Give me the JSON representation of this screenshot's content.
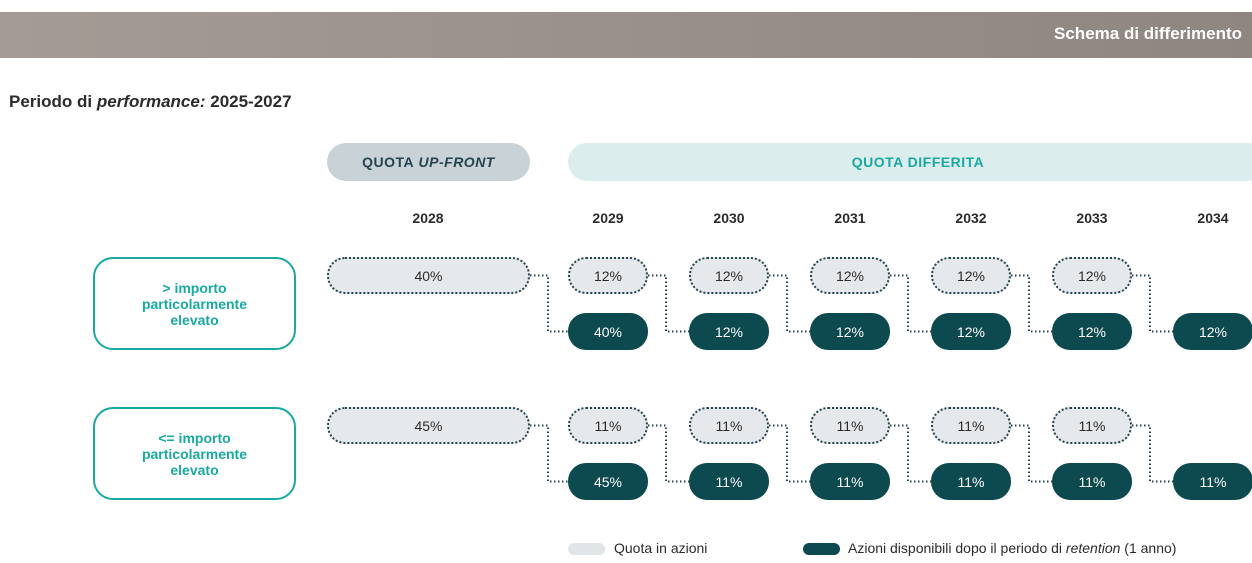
{
  "header": {
    "title": "Schema di differimento"
  },
  "period": {
    "label": "Periodo di",
    "emphasis": "performance:",
    "years": "2025-2027"
  },
  "columns": {
    "upfront": {
      "label": "QUOTA",
      "emphasis": "UP-FRONT"
    },
    "deferred": "QUOTA DIFFERITA"
  },
  "years": [
    "2028",
    "2029",
    "2030",
    "2031",
    "2032",
    "2033",
    "2034"
  ],
  "rows": [
    {
      "label": "> importo particolarmente elevato",
      "quota": [
        "40%",
        "12%",
        "12%",
        "12%",
        "12%",
        "12%"
      ],
      "available": [
        "40%",
        "12%",
        "12%",
        "12%",
        "12%",
        "12%"
      ]
    },
    {
      "label": "<= importo particolarmente elevato",
      "quota": [
        "45%",
        "11%",
        "11%",
        "11%",
        "11%",
        "11%"
      ],
      "available": [
        "45%",
        "11%",
        "11%",
        "11%",
        "11%",
        "11%"
      ]
    }
  ],
  "legend": {
    "quota": "Quota in azioni",
    "available": {
      "label": "Azioni disponibili dopo il periodo di",
      "emphasis": "retention",
      "suffix": "(1 anno)"
    }
  }
}
